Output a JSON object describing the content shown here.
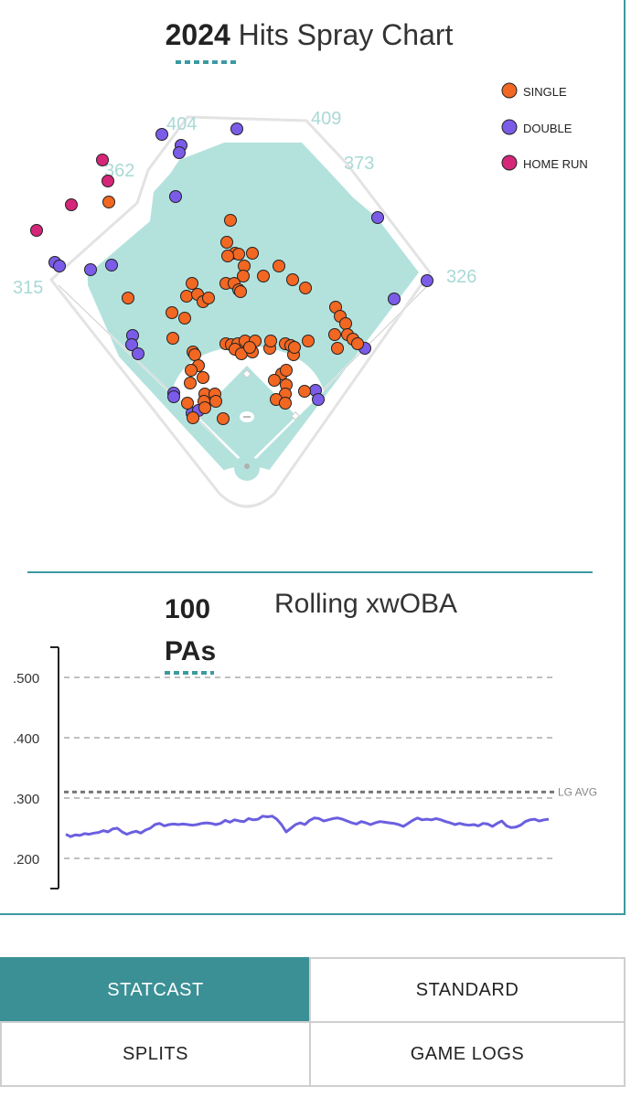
{
  "spray": {
    "title_year": "2024",
    "title_rest": "Hits Spray Chart",
    "fence_labels": [
      "315",
      "362",
      "404",
      "409",
      "373",
      "326"
    ],
    "legend": [
      {
        "label": "SINGLE",
        "color": "#f26722"
      },
      {
        "label": "DOUBLE",
        "color": "#7b5ce8"
      },
      {
        "label": "HOME RUN",
        "color": "#d6267a"
      }
    ],
    "colors": {
      "field": "#b3e2dd",
      "stroke": "#222222"
    }
  },
  "rolling": {
    "pa_value": "100",
    "pa_unit": "PAs",
    "title": "Rolling xwOBA",
    "league_avg_label": "LG AVG"
  },
  "chart_data": {
    "type": "line",
    "series": [
      {
        "values": [
          0.24,
          0.236,
          0.239,
          0.238,
          0.241,
          0.24,
          0.242,
          0.243,
          0.246,
          0.244,
          0.249,
          0.25,
          0.244,
          0.24,
          0.243,
          0.245,
          0.242,
          0.247,
          0.25,
          0.256,
          0.258,
          0.254,
          0.256,
          0.257,
          0.256,
          0.257,
          0.256,
          0.255,
          0.256,
          0.258,
          0.259,
          0.258,
          0.256,
          0.258,
          0.263,
          0.26,
          0.264,
          0.262,
          0.261,
          0.266,
          0.264,
          0.265,
          0.27,
          0.269,
          0.27,
          0.265,
          0.256,
          0.244,
          0.25,
          0.256,
          0.259,
          0.256,
          0.263,
          0.267,
          0.266,
          0.262,
          0.264,
          0.266,
          0.267,
          0.265,
          0.262,
          0.259,
          0.257,
          0.261,
          0.259,
          0.256,
          0.259,
          0.261,
          0.26,
          0.259,
          0.258,
          0.256,
          0.253,
          0.258,
          0.263,
          0.267,
          0.264,
          0.265,
          0.264,
          0.266,
          0.264,
          0.261,
          0.259,
          0.256,
          0.258,
          0.256,
          0.255,
          0.256,
          0.254,
          0.258,
          0.257,
          0.253,
          0.258,
          0.262,
          0.254,
          0.251,
          0.252,
          0.255,
          0.261,
          0.264,
          0.265,
          0.262,
          0.264,
          0.265
        ]
      }
    ],
    "y_ticks": [
      ".500",
      ".400",
      ".300",
      ".200"
    ],
    "y_tick_values": [
      0.5,
      0.4,
      0.3,
      0.2
    ],
    "ylim": [
      0.15,
      0.55
    ],
    "league_avg": 0.31,
    "grid": true
  },
  "tabs": [
    {
      "label": "STATCAST",
      "active": true
    },
    {
      "label": "STANDARD",
      "active": false
    },
    {
      "label": "SPLITS",
      "active": false
    },
    {
      "label": "GAME LOGS",
      "active": false
    }
  ]
}
